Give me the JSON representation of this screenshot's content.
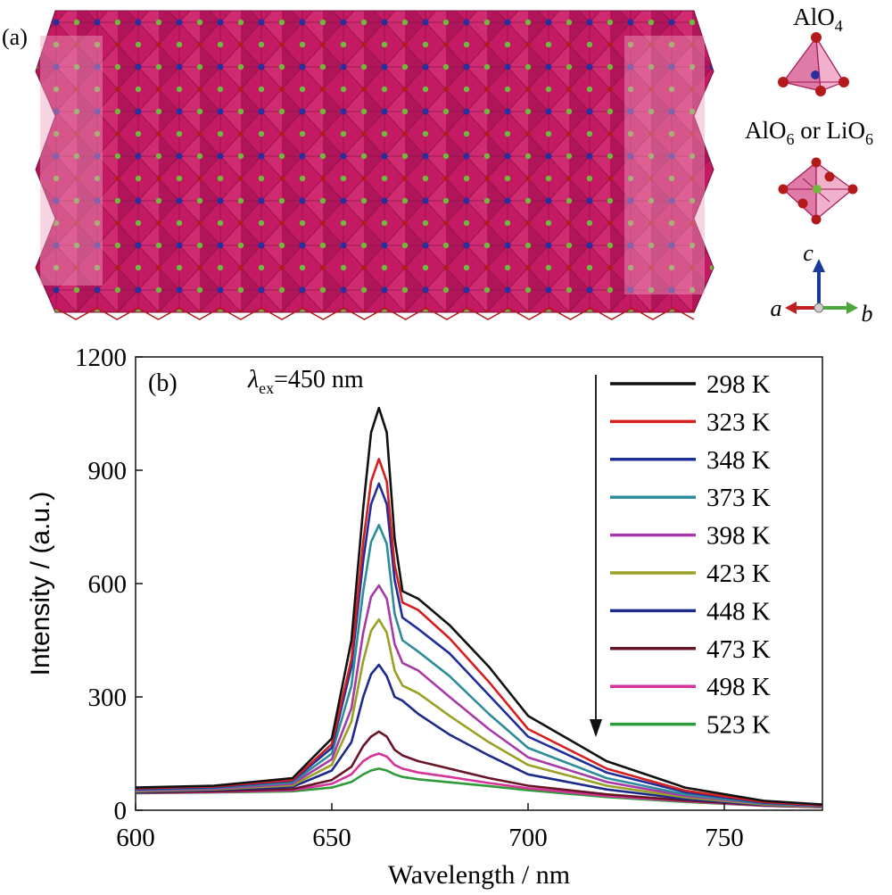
{
  "panel_a": {
    "label": "(a)",
    "legend": {
      "tetra": {
        "base": "AlO",
        "sub": "4"
      },
      "octa": {
        "base1": "AlO",
        "sub1": "6",
        "mid": " or LiO",
        "sub2": "6"
      }
    },
    "axes": {
      "c": "c",
      "a": "a",
      "b": "b"
    },
    "colors": {
      "polyhedron": "#c41a63",
      "polyhedron_light": "#eea0bf",
      "oxygen": "#b31a1a",
      "aluminum": "#2b2f9e",
      "lithium": "#6fba3a"
    }
  },
  "chart_data": {
    "type": "line",
    "panel_label": "(b)",
    "annotation": {
      "symbol": "λ",
      "sub": "ex",
      "text": "=450 nm"
    },
    "xlabel": "Wavelength / nm",
    "ylabel": "Intensity / (a.u.)",
    "xlim": [
      600,
      775
    ],
    "ylim": [
      0,
      1200
    ],
    "xticks": [
      600,
      650,
      700,
      750
    ],
    "yticks": [
      0,
      300,
      600,
      900,
      1200
    ],
    "grid": false,
    "legend_position": "top-right",
    "legend_arrow": "downward",
    "x": [
      600,
      620,
      640,
      650,
      655,
      658,
      660,
      662,
      664,
      666,
      668,
      672,
      680,
      690,
      700,
      720,
      740,
      760,
      775
    ],
    "series": [
      {
        "name": "298 K",
        "color": "#111111",
        "values": [
          60,
          65,
          85,
          190,
          450,
          800,
          1000,
          1065,
          1000,
          720,
          580,
          560,
          490,
          380,
          250,
          130,
          60,
          25,
          15
        ]
      },
      {
        "name": "323 K",
        "color": "#d32020",
        "values": [
          58,
          63,
          80,
          175,
          400,
          710,
          870,
          930,
          870,
          650,
          550,
          530,
          455,
          340,
          215,
          110,
          52,
          22,
          13
        ]
      },
      {
        "name": "348 K",
        "color": "#1f2f9a",
        "values": [
          56,
          61,
          78,
          165,
          380,
          660,
          810,
          865,
          810,
          610,
          510,
          480,
          415,
          305,
          195,
          100,
          48,
          20,
          12
        ]
      },
      {
        "name": "373 K",
        "color": "#2e8b9a",
        "values": [
          54,
          59,
          74,
          150,
          330,
          580,
          710,
          755,
          705,
          520,
          450,
          420,
          355,
          255,
          165,
          85,
          42,
          18,
          11
        ]
      },
      {
        "name": "398 K",
        "color": "#a63aa6",
        "values": [
          52,
          57,
          70,
          135,
          270,
          470,
          565,
          595,
          560,
          440,
          390,
          370,
          300,
          215,
          140,
          75,
          38,
          17,
          10
        ]
      },
      {
        "name": "423 K",
        "color": "#9aa024",
        "values": [
          50,
          55,
          66,
          120,
          235,
          395,
          475,
          505,
          470,
          370,
          330,
          310,
          250,
          180,
          120,
          65,
          34,
          15,
          9
        ]
      },
      {
        "name": "448 K",
        "color": "#1c2a8a",
        "values": [
          48,
          53,
          62,
          105,
          180,
          300,
          360,
          385,
          355,
          300,
          290,
          255,
          200,
          145,
          95,
          55,
          30,
          14,
          9
        ]
      },
      {
        "name": "473 K",
        "color": "#6a1428",
        "values": [
          47,
          50,
          56,
          80,
          115,
          170,
          195,
          208,
          195,
          160,
          145,
          130,
          110,
          85,
          65,
          42,
          26,
          13,
          8
        ]
      },
      {
        "name": "498 K",
        "color": "#d6339a",
        "values": [
          46,
          48,
          53,
          70,
          95,
          130,
          143,
          150,
          142,
          120,
          110,
          100,
          88,
          72,
          58,
          38,
          24,
          12,
          8
        ]
      },
      {
        "name": "523 K",
        "color": "#2f9a3a",
        "values": [
          45,
          47,
          50,
          60,
          75,
          95,
          105,
          110,
          105,
          95,
          88,
          82,
          74,
          64,
          53,
          35,
          22,
          12,
          8
        ]
      }
    ]
  }
}
